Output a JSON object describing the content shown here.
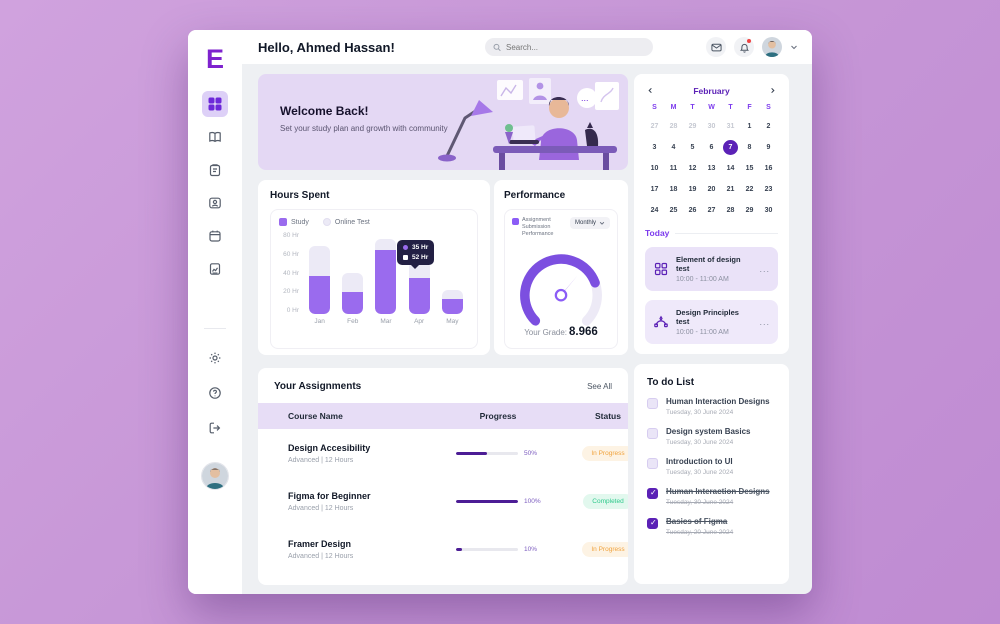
{
  "window": {
    "logo": "E"
  },
  "sidebar": {
    "items": [
      "dashboard",
      "courses",
      "tasks",
      "profile",
      "schedule",
      "reports",
      "settings",
      "help",
      "logout"
    ]
  },
  "header": {
    "greeting": "Hello, Ahmed Hassan!",
    "search_placeholder": "Search..."
  },
  "banner": {
    "title": "Welcome Back!",
    "subtitle": "Set your study plan and growth with community"
  },
  "chart_data": [
    {
      "type": "bar",
      "title": "Hours Spent",
      "stacked": true,
      "categories": [
        "Jan",
        "Feb",
        "Mar",
        "Apr",
        "May"
      ],
      "series": [
        {
          "name": "Study",
          "color": "#9a6bee",
          "values": [
            37,
            21,
            62,
            35,
            15
          ]
        },
        {
          "name": "Online Test",
          "color": "#eceaf6",
          "values": [
            29,
            19,
            11,
            17,
            8
          ]
        }
      ],
      "totals": [
        66,
        40,
        73,
        52,
        23
      ],
      "yticks_display": [
        "80 Hr",
        "60 Hr",
        "40 Hr",
        "20 Hr",
        "0 Hr"
      ],
      "ylim": [
        0,
        80
      ],
      "legend_position": "top-left",
      "tooltip": {
        "category": "Apr",
        "lines": [
          "35 Hr",
          "52 Hr"
        ]
      }
    },
    {
      "type": "gauge",
      "title": "Performance",
      "legend": "Assignment Submission Performance",
      "period": "Monthly",
      "grade_label": "Your Grade:",
      "grade": "8.966",
      "value_fraction": 0.8,
      "arc_color": "#7c4fe0"
    }
  ],
  "calendar": {
    "month": "February",
    "day_names": [
      "S",
      "M",
      "T",
      "W",
      "T",
      "F",
      "S"
    ],
    "cells": [
      {
        "d": "27",
        "state": "muted"
      },
      {
        "d": "28",
        "state": "muted"
      },
      {
        "d": "29",
        "state": "muted"
      },
      {
        "d": "30",
        "state": "muted"
      },
      {
        "d": "31",
        "state": "muted"
      },
      {
        "d": "1",
        "state": ""
      },
      {
        "d": "2",
        "state": ""
      },
      {
        "d": "3",
        "state": ""
      },
      {
        "d": "4",
        "state": ""
      },
      {
        "d": "5",
        "state": ""
      },
      {
        "d": "6",
        "state": ""
      },
      {
        "d": "7",
        "state": "selected"
      },
      {
        "d": "8",
        "state": ""
      },
      {
        "d": "9",
        "state": ""
      },
      {
        "d": "10",
        "state": ""
      },
      {
        "d": "11",
        "state": ""
      },
      {
        "d": "12",
        "state": ""
      },
      {
        "d": "13",
        "state": ""
      },
      {
        "d": "14",
        "state": ""
      },
      {
        "d": "15",
        "state": ""
      },
      {
        "d": "16",
        "state": ""
      },
      {
        "d": "17",
        "state": ""
      },
      {
        "d": "18",
        "state": ""
      },
      {
        "d": "19",
        "state": ""
      },
      {
        "d": "20",
        "state": ""
      },
      {
        "d": "21",
        "state": ""
      },
      {
        "d": "22",
        "state": ""
      },
      {
        "d": "23",
        "state": ""
      },
      {
        "d": "24",
        "state": ""
      },
      {
        "d": "25",
        "state": ""
      },
      {
        "d": "26",
        "state": ""
      },
      {
        "d": "27",
        "state": ""
      },
      {
        "d": "28",
        "state": ""
      },
      {
        "d": "29",
        "state": ""
      },
      {
        "d": "30",
        "state": ""
      }
    ]
  },
  "today": {
    "label": "Today",
    "events": [
      {
        "title": "Element of design test",
        "time": "10:00 - 11:00 AM",
        "icon": "grid-icon"
      },
      {
        "title": "Design Principles test",
        "time": "10:00 - 11:00 AM",
        "icon": "pen-tool-icon"
      }
    ]
  },
  "assignments": {
    "title": "Your Assignments",
    "see_all": "See All",
    "columns": [
      "Course Name",
      "Progress",
      "Status"
    ],
    "rows": [
      {
        "name": "Design Accesibility",
        "meta": "Advanced  |  12 Hours",
        "progress_pct": 50,
        "progress_label": "50%",
        "status": "In Progress",
        "status_type": "inprogress"
      },
      {
        "name": "Figma for Beginner",
        "meta": "Advanced  |  12 Hours",
        "progress_pct": 100,
        "progress_label": "100%",
        "status": "Completed",
        "status_type": "completed"
      },
      {
        "name": "Framer Design",
        "meta": "Advanced  |  12 Hours",
        "progress_pct": 10,
        "progress_label": "10%",
        "status": "In Progress",
        "status_type": "inprogress"
      }
    ]
  },
  "todo": {
    "title": "To do List",
    "items": [
      {
        "title": "Human Interaction Designs",
        "date": "Tuesday, 30 June 2024",
        "state": "open"
      },
      {
        "title": "Design system Basics",
        "date": "Tuesday, 30 June 2024",
        "state": "open"
      },
      {
        "title": "Introduction to UI",
        "date": "Tuesday, 30 June 2024",
        "state": "open"
      },
      {
        "title": "Human Interaction Designs",
        "date": "Tuesday, 30 June 2024",
        "state": "done"
      },
      {
        "title": "Basics of Figma",
        "date": "Tuesday, 20 June 2024",
        "state": "done"
      }
    ]
  },
  "icons": {
    "more": "...",
    "prev": "‹",
    "next": "›"
  },
  "colors": {
    "accent": "#6d28d9",
    "bar": "#9a6bee",
    "bar_light": "#eceaf6",
    "status_inprogress": "#f0a23c",
    "status_completed": "#2fc98c",
    "notification_dot": "#ef4444",
    "selected_day": "#5b21b6",
    "banner_bg": "#e4d8f4"
  }
}
